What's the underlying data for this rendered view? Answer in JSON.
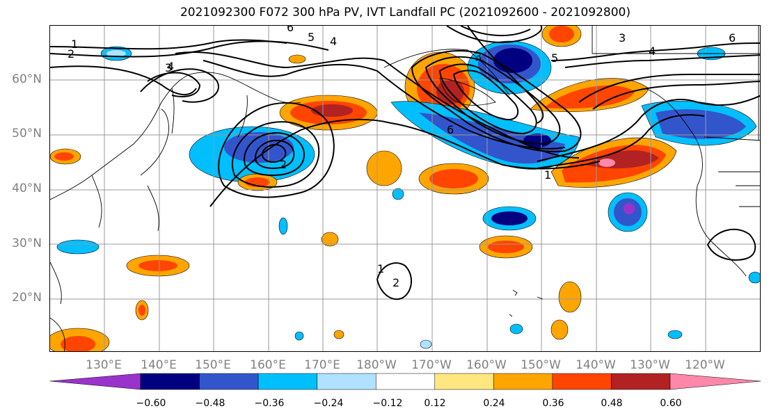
{
  "title": "2021092300 F072 300 hPa PV, IVT Landfall PC (2021092600 - 2021092800)",
  "lat_labels": [
    "60°N",
    "50°N",
    "40°N",
    "30°N",
    "20°N"
  ],
  "lon_labels": [
    "130°E",
    "140°E",
    "150°E",
    "160°E",
    "170°E",
    "180°W",
    "170°W",
    "160°W",
    "150°W",
    "140°W",
    "130°W",
    "120°W"
  ],
  "contour_labels": [
    "1",
    "2",
    "3",
    "4",
    "5",
    "6"
  ],
  "colorbar": {
    "ticks": [
      "−0.60",
      "−0.48",
      "−0.36",
      "−0.24",
      "−0.12",
      "0.12",
      "0.24",
      "0.36",
      "0.48",
      "0.60"
    ],
    "colors": [
      "#9933cc",
      "#000080",
      "#3355cc",
      "#00bfff",
      "#b0e2ff",
      "#ffffff",
      "#ffe680",
      "#ffa500",
      "#ff4500",
      "#b22222",
      "#ff88aa"
    ]
  }
}
